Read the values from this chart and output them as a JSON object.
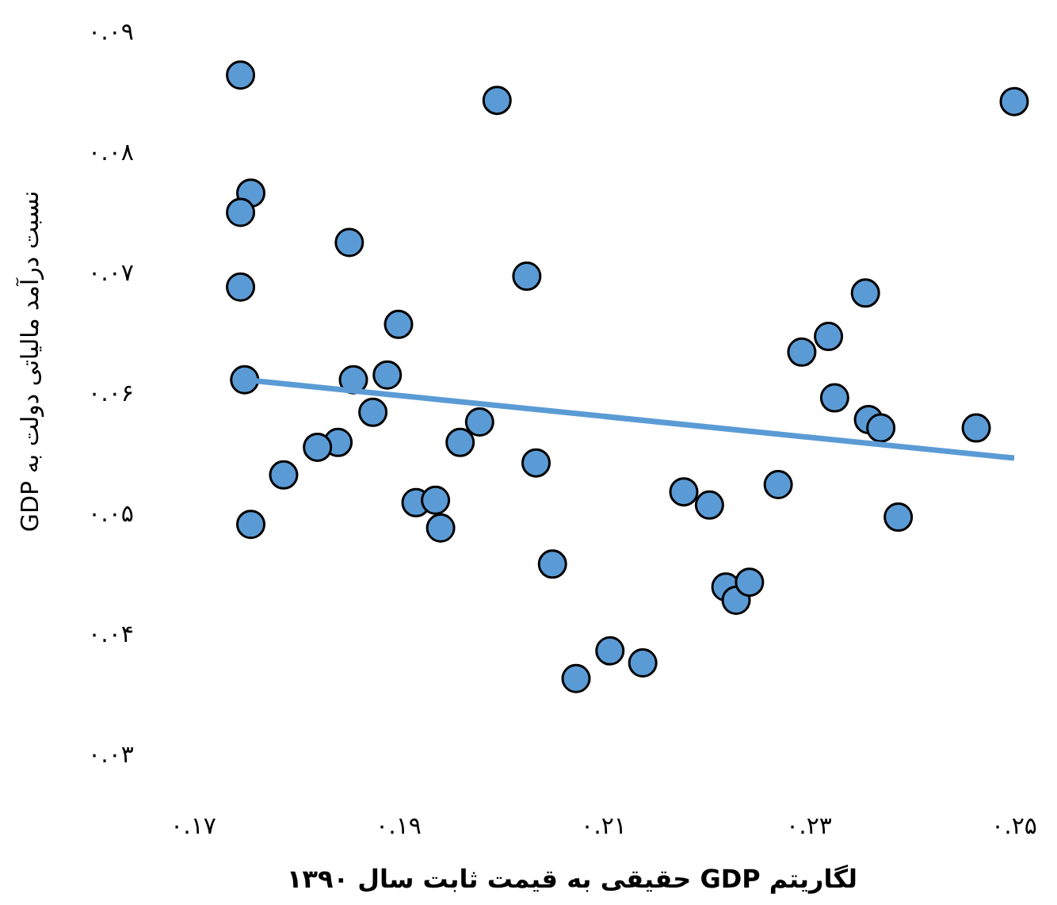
{
  "chart_data": {
    "type": "scatter",
    "xlabel": "لگاریتم GDP حقیقی به قیمت ثابت سال ۱۳۹۰",
    "ylabel": "نسبت درآمد مالیاتی دولت به GDP",
    "xlim": [
      0.17,
      0.25
    ],
    "ylim": [
      0.03,
      0.09
    ],
    "xticks": [
      {
        "value": 0.17,
        "label": "۰.۱۷"
      },
      {
        "value": 0.19,
        "label": "۰.۱۹"
      },
      {
        "value": 0.21,
        "label": "۰.۲۱"
      },
      {
        "value": 0.23,
        "label": "۰.۲۳"
      },
      {
        "value": 0.25,
        "label": "۰.۲۵"
      }
    ],
    "yticks": [
      {
        "value": 0.03,
        "label": "۰.۰۳"
      },
      {
        "value": 0.04,
        "label": "۰.۰۴"
      },
      {
        "value": 0.05,
        "label": "۰.۰۵"
      },
      {
        "value": 0.06,
        "label": "۰.۰۶"
      },
      {
        "value": 0.07,
        "label": "۰.۰۷"
      },
      {
        "value": 0.08,
        "label": "۰.۰۸"
      },
      {
        "value": 0.09,
        "label": "۰.۰۹"
      }
    ],
    "grid": false,
    "series": [
      {
        "marker": "circle",
        "color": "#5b9bd5",
        "x": [
          0.1746,
          0.1996,
          0.1756,
          0.1746,
          0.1852,
          0.2025,
          0.1746,
          0.19,
          0.175,
          0.1856,
          0.1889,
          0.1875,
          0.1979,
          0.196,
          0.1841,
          0.1821,
          0.1788,
          0.2034,
          0.1917,
          0.1936,
          0.1941,
          0.1756,
          0.205,
          0.2178,
          0.2203,
          0.227,
          0.2219,
          0.2229,
          0.2242,
          0.2073,
          0.2106,
          0.2138,
          0.2387,
          0.2463,
          0.2293,
          0.2319,
          0.2355,
          0.2325,
          0.2358,
          0.237,
          0.25
        ],
        "values": [
          0.0864,
          0.0843,
          0.0766,
          0.075,
          0.0725,
          0.0697,
          0.0688,
          0.0657,
          0.0611,
          0.0611,
          0.0615,
          0.0584,
          0.0576,
          0.0559,
          0.0559,
          0.0555,
          0.0532,
          0.0542,
          0.0509,
          0.0511,
          0.0488,
          0.0491,
          0.0458,
          0.0518,
          0.0507,
          0.0524,
          0.0439,
          0.0428,
          0.0443,
          0.0363,
          0.0386,
          0.0376,
          0.0497,
          0.0571,
          0.0634,
          0.0647,
          0.0683,
          0.0596,
          0.0578,
          0.0571,
          0.0842
        ]
      },
      {
        "type": "line",
        "marker": "none",
        "color": "#5b9bd5",
        "x": [
          0.175,
          0.25
        ],
        "values": [
          0.0611,
          0.0546
        ]
      }
    ]
  }
}
